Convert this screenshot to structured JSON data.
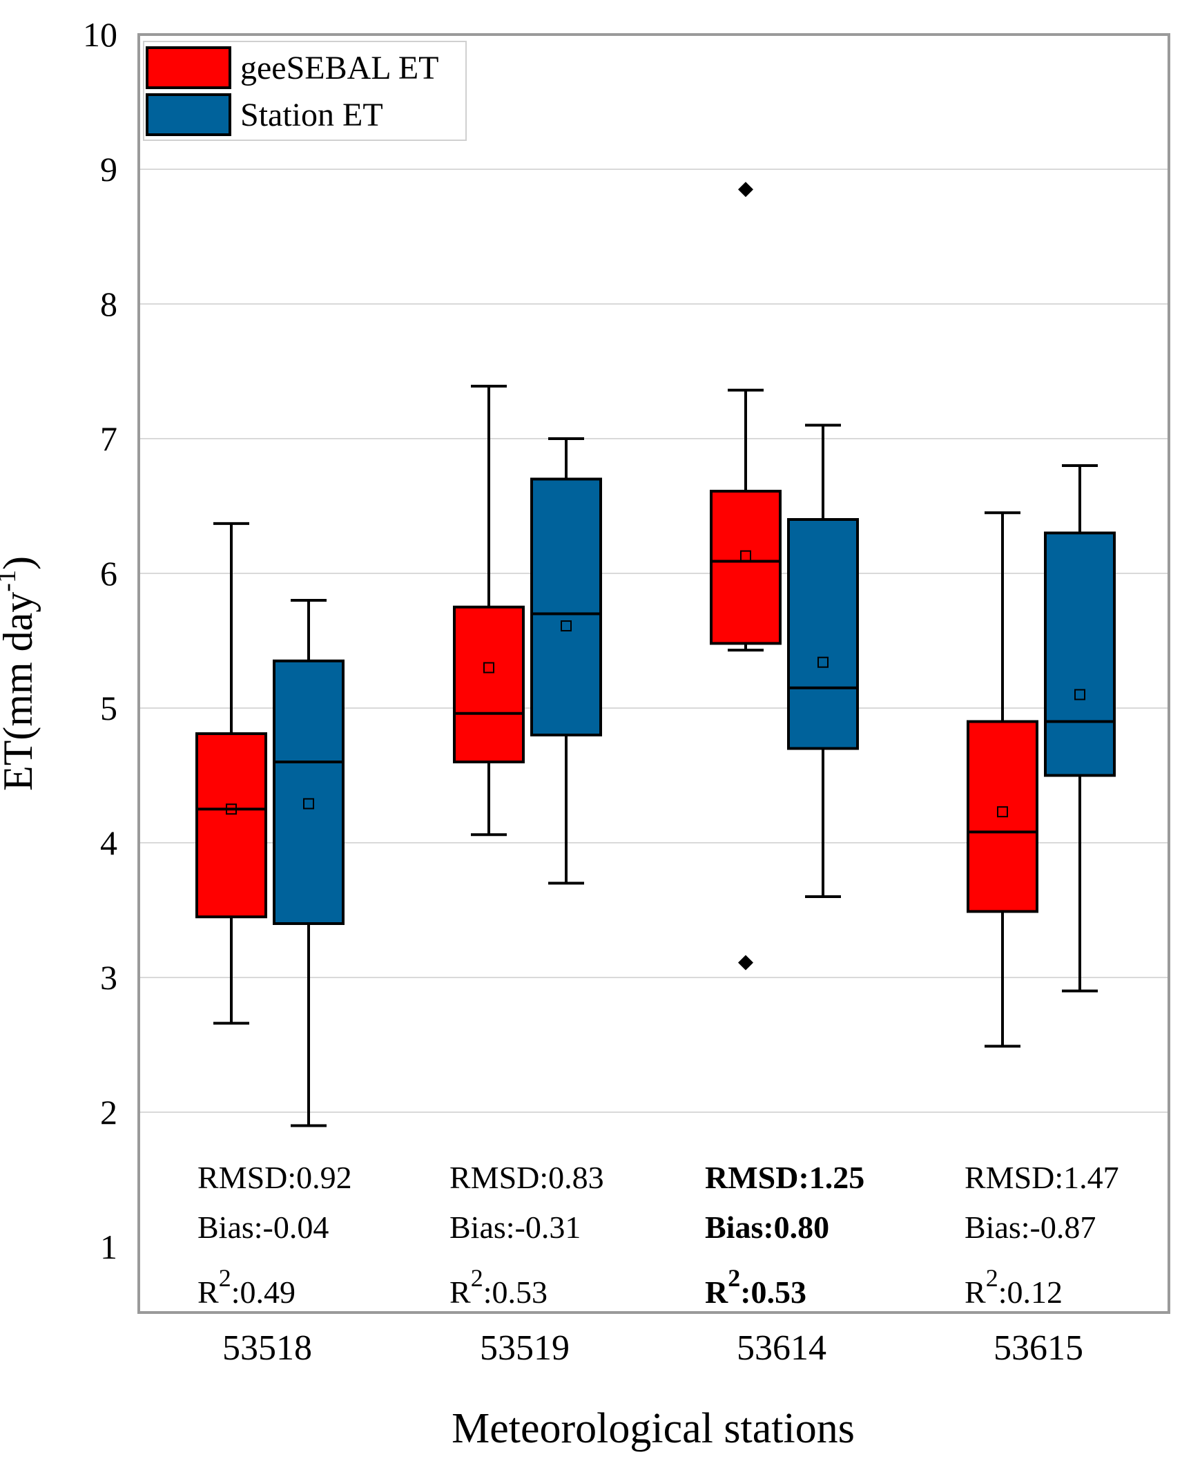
{
  "chart_data": {
    "type": "boxplot",
    "title": "",
    "xlabel": "Meteorological stations",
    "ylabel_main": "ET(mm day",
    "ylabel_sup": "-1",
    "ylabel_close": ")",
    "ylim": [
      1,
      10
    ],
    "yticks": [
      "1",
      "2",
      "3",
      "4",
      "5",
      "6",
      "7",
      "8",
      "9",
      "10"
    ],
    "grid": true,
    "legend_position": "top-left",
    "categories": [
      "53518",
      "53519",
      "53614",
      "53615"
    ],
    "series": [
      {
        "name": "geeSEBAL ET",
        "color": "#ff0000",
        "boxes": [
          {
            "min": 2.66,
            "q1": 3.45,
            "median": 4.25,
            "q3": 4.81,
            "max": 6.37,
            "mean": 4.25,
            "outliers": []
          },
          {
            "min": 4.06,
            "q1": 4.6,
            "median": 4.96,
            "q3": 5.75,
            "max": 7.39,
            "mean": 5.3,
            "outliers": []
          },
          {
            "min": 5.43,
            "q1": 5.48,
            "median": 6.09,
            "q3": 6.61,
            "max": 7.36,
            "mean": 6.13,
            "outliers": [
              8.85,
              3.11
            ]
          },
          {
            "min": 2.49,
            "q1": 3.49,
            "median": 4.08,
            "q3": 4.9,
            "max": 6.45,
            "mean": 4.23,
            "outliers": []
          }
        ]
      },
      {
        "name": "Station ET",
        "color": "#00629b",
        "boxes": [
          {
            "min": 1.9,
            "q1": 3.4,
            "median": 4.6,
            "q3": 5.35,
            "max": 5.8,
            "mean": 4.29,
            "outliers": []
          },
          {
            "min": 3.7,
            "q1": 4.8,
            "median": 5.7,
            "q3": 6.7,
            "max": 7.0,
            "mean": 5.61,
            "outliers": []
          },
          {
            "min": 3.6,
            "q1": 4.7,
            "median": 5.15,
            "q3": 6.4,
            "max": 7.1,
            "mean": 5.34,
            "outliers": []
          },
          {
            "min": 2.9,
            "q1": 4.5,
            "median": 4.9,
            "q3": 6.3,
            "max": 6.8,
            "mean": 5.1,
            "outliers": []
          }
        ]
      }
    ],
    "stats": [
      {
        "rmsd": "RMSD:0.92",
        "bias": "Bias:-0.04",
        "r2_base": "R",
        "r2_sup": "2",
        "r2_value": ":0.49"
      },
      {
        "rmsd": "RMSD:0.83",
        "bias": "Bias:-0.31",
        "r2_base": "R",
        "r2_sup": "2",
        "r2_value": ":0.53"
      },
      {
        "rmsd": "RMSD:1.25",
        "bias": "Bias:0.80",
        "r2_base": "R",
        "r2_sup": "2",
        "r2_value": ":0.53"
      },
      {
        "rmsd": "RMSD:1.47",
        "bias": "Bias:-0.87",
        "r2_base": "R",
        "r2_sup": "2",
        "r2_value": ":0.12"
      }
    ]
  }
}
